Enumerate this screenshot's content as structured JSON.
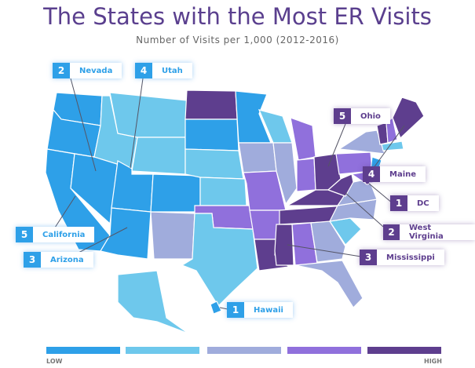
{
  "title": "The States with the Most ER Visits",
  "subtitle": "Number of Visits per 1,000 (2012-2016)",
  "colors": {
    "level1": "#2ea0e8",
    "level2": "#6ec8ec",
    "level3": "#a0acdc",
    "level4": "#9070dc",
    "level5": "#5e3e8e"
  },
  "callouts": [
    {
      "rank": "2",
      "state": "Nevada"
    },
    {
      "rank": "4",
      "state": "Utah"
    },
    {
      "rank": "5",
      "state": "Ohio"
    },
    {
      "rank": "4",
      "state": "Maine"
    },
    {
      "rank": "1",
      "state": "DC"
    },
    {
      "rank": "2",
      "state": "West Virginia"
    },
    {
      "rank": "3",
      "state": "Mississippi"
    },
    {
      "rank": "1",
      "state": "Hawaii"
    },
    {
      "rank": "5",
      "state": "California"
    },
    {
      "rank": "3",
      "state": "Arizona"
    }
  ],
  "legend": {
    "low": "LOW",
    "high": "HIGH"
  }
}
